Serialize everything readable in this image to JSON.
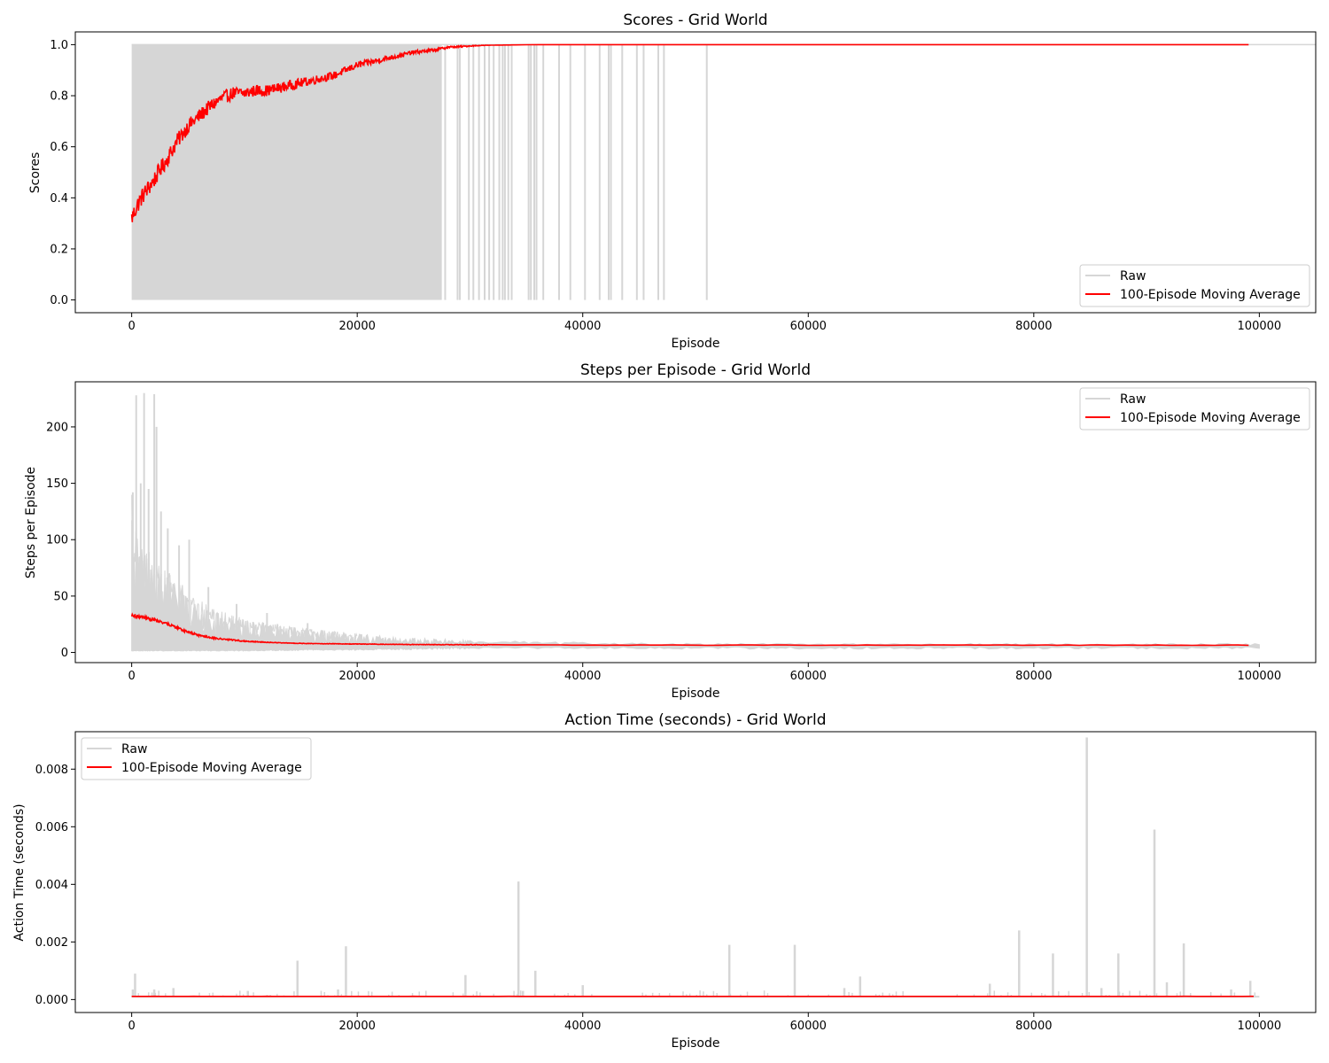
{
  "colors": {
    "raw": "#d6d6d6",
    "moving_average": "#ff0000",
    "axes": "#000000",
    "background": "#ffffff"
  },
  "chart_data": [
    {
      "type": "line",
      "title": "Scores - Grid World",
      "xlabel": "Episode",
      "ylabel": "Scores",
      "xlim": [
        -5000,
        105000
      ],
      "ylim": [
        -0.05,
        1.05
      ],
      "xticks": [
        0,
        20000,
        40000,
        60000,
        80000,
        100000
      ],
      "xtick_labels": [
        "0",
        "20000",
        "40000",
        "60000",
        "80000",
        "100000"
      ],
      "yticks": [
        0.0,
        0.2,
        0.4,
        0.6,
        0.8,
        1.0
      ],
      "ytick_labels": [
        "0.0",
        "0.2",
        "0.4",
        "0.6",
        "0.8",
        "1.0"
      ],
      "grid": false,
      "legend": {
        "placement": "lower-right",
        "entries": [
          "Raw",
          "100-Episode Moving Average"
        ]
      },
      "series": [
        {
          "name": "Raw",
          "kind": "band_and_spikes",
          "band": {
            "x": [
              0,
              27500
            ],
            "y": [
              0,
              1
            ]
          },
          "spike_x": [
            27800,
            28900,
            29100,
            29900,
            30300,
            30800,
            31300,
            31700,
            32100,
            32600,
            32900,
            33100,
            33400,
            33700,
            35200,
            35400,
            35700,
            35900,
            36500,
            37900,
            38900,
            40200,
            41500,
            42300,
            42500,
            43500,
            44800,
            45400,
            46700,
            47200,
            51000
          ],
          "spike_range": [
            0,
            1
          ]
        },
        {
          "name": "100-Episode Moving Average",
          "x": [
            0,
            300,
            600,
            1000,
            1500,
            2000,
            2500,
            3000,
            3500,
            4000,
            4500,
            5000,
            6000,
            7000,
            8000,
            9000,
            10000,
            11000,
            12000,
            13000,
            14000,
            15000,
            16000,
            17000,
            18000,
            19000,
            20000,
            21000,
            22000,
            23000,
            24000,
            25000,
            26000,
            27000,
            28000,
            29000,
            30000,
            31000,
            32000,
            34000,
            36000,
            40000,
            50000,
            60000,
            80000,
            100000
          ],
          "y": [
            0.32,
            0.35,
            0.38,
            0.41,
            0.44,
            0.47,
            0.51,
            0.54,
            0.58,
            0.62,
            0.65,
            0.68,
            0.72,
            0.76,
            0.79,
            0.81,
            0.81,
            0.82,
            0.82,
            0.83,
            0.84,
            0.85,
            0.86,
            0.87,
            0.88,
            0.9,
            0.92,
            0.93,
            0.94,
            0.95,
            0.96,
            0.97,
            0.975,
            0.98,
            0.99,
            0.992,
            0.995,
            0.997,
            0.998,
            0.999,
            1.0,
            1.0,
            1.0,
            1.0,
            1.0,
            1.0
          ],
          "noise": 0.035
        }
      ]
    },
    {
      "type": "line",
      "title": "Steps per Episode - Grid World",
      "xlabel": "Episode",
      "ylabel": "Steps per Episode",
      "xlim": [
        -5000,
        105000
      ],
      "ylim": [
        -9,
        240
      ],
      "xticks": [
        0,
        20000,
        40000,
        60000,
        80000,
        100000
      ],
      "xtick_labels": [
        "0",
        "20000",
        "40000",
        "60000",
        "80000",
        "100000"
      ],
      "yticks": [
        0,
        50,
        100,
        150,
        200
      ],
      "ytick_labels": [
        "0",
        "50",
        "100",
        "150",
        "200"
      ],
      "grid": false,
      "legend": {
        "placement": "top-right",
        "entries": [
          "Raw",
          "100-Episode Moving Average"
        ]
      },
      "series": [
        {
          "name": "Raw",
          "kind": "envelope",
          "x": [
            0,
            500,
            1000,
            2000,
            3000,
            4000,
            5000,
            7000,
            10000,
            15000,
            20000,
            25000,
            30000,
            40000,
            50000,
            100000
          ],
          "upper": [
            140,
            110,
            95,
            85,
            75,
            65,
            55,
            40,
            30,
            22,
            17,
            13,
            11,
            9,
            8,
            8
          ],
          "lower": [
            2,
            2,
            2,
            2,
            2,
            2,
            2,
            2,
            2,
            3,
            3,
            4,
            5,
            5,
            5,
            5
          ],
          "peaks": [
            [
              100,
              142
            ],
            [
              400,
              228
            ],
            [
              800,
              150
            ],
            [
              1100,
              230
            ],
            [
              1500,
              145
            ],
            [
              2000,
              229
            ],
            [
              2200,
              200
            ],
            [
              2600,
              125
            ],
            [
              3200,
              110
            ],
            [
              4200,
              95
            ],
            [
              5100,
              100
            ],
            [
              6800,
              58
            ],
            [
              9300,
              43
            ],
            [
              12000,
              35
            ],
            [
              15600,
              26
            ]
          ]
        },
        {
          "name": "100-Episode Moving Average",
          "x": [
            0,
            500,
            1000,
            2000,
            3000,
            4000,
            5000,
            6000,
            7000,
            8000,
            10000,
            12000,
            15000,
            20000,
            25000,
            30000,
            40000,
            60000,
            80000,
            100000
          ],
          "y": [
            33,
            32,
            31,
            29,
            26,
            22,
            18,
            15,
            13,
            12,
            10,
            9,
            8,
            7.5,
            7,
            6.8,
            6.6,
            6.5,
            6.5,
            6.5
          ],
          "noise": 1.5
        }
      ]
    },
    {
      "type": "line",
      "title": "Action Time (seconds) - Grid World",
      "xlabel": "Episode",
      "ylabel": "Action Time (seconds)",
      "xlim": [
        -5000,
        105000
      ],
      "ylim": [
        -0.00045,
        0.0093
      ],
      "xticks": [
        0,
        20000,
        40000,
        60000,
        80000,
        100000
      ],
      "xtick_labels": [
        "0",
        "20000",
        "40000",
        "60000",
        "80000",
        "100000"
      ],
      "yticks": [
        0.0,
        0.002,
        0.004,
        0.006,
        0.008
      ],
      "ytick_labels": [
        "0.000",
        "0.002",
        "0.004",
        "0.006",
        "0.008"
      ],
      "grid": false,
      "legend": {
        "placement": "top-left",
        "entries": [
          "Raw",
          "100-Episode Moving Average"
        ]
      },
      "series": [
        {
          "name": "Raw",
          "kind": "baseline_and_spikes",
          "baseline": 0.0001,
          "spikes": [
            [
              100,
              0.00035
            ],
            [
              300,
              0.0009
            ],
            [
              2000,
              0.00035
            ],
            [
              3700,
              0.0004
            ],
            [
              10300,
              0.0003
            ],
            [
              14700,
              0.00135
            ],
            [
              18300,
              0.00035
            ],
            [
              19000,
              0.00185
            ],
            [
              29600,
              0.00085
            ],
            [
              34300,
              0.0041
            ],
            [
              34700,
              0.0003
            ],
            [
              35800,
              0.001
            ],
            [
              40000,
              0.0005
            ],
            [
              53000,
              0.0019
            ],
            [
              58800,
              0.0019
            ],
            [
              63200,
              0.0004
            ],
            [
              64600,
              0.0008
            ],
            [
              76100,
              0.00055
            ],
            [
              78700,
              0.0024
            ],
            [
              81700,
              0.0016
            ],
            [
              84700,
              0.0091
            ],
            [
              86000,
              0.0004
            ],
            [
              87500,
              0.0016
            ],
            [
              90700,
              0.0059
            ],
            [
              91800,
              0.0006
            ],
            [
              93300,
              0.00195
            ],
            [
              97500,
              0.00035
            ],
            [
              99200,
              0.00065
            ]
          ],
          "small_spike_height": 0.00022
        },
        {
          "name": "100-Episode Moving Average",
          "x": [
            0,
            100000
          ],
          "y": [
            0.00011,
            0.00011
          ],
          "noise": 1.5e-06
        }
      ]
    }
  ]
}
